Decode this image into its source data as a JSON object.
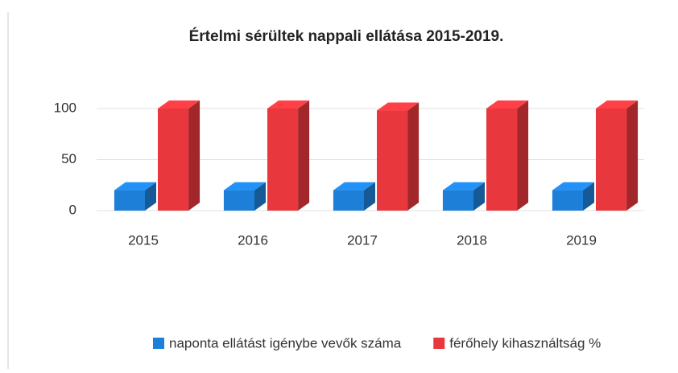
{
  "chart_data": {
    "type": "bar",
    "title": "Értelmi sérültek nappali ellátása 2015-2019.",
    "categories": [
      "2015",
      "2016",
      "2017",
      "2018",
      "2019"
    ],
    "series": [
      {
        "name": "naponta ellátást igénybe vevők száma",
        "color": "#1e7fd8",
        "values": [
          20,
          20,
          20,
          20,
          20
        ]
      },
      {
        "name": "férőhely kihasználtság %",
        "color": "#e8383d",
        "values": [
          100,
          100,
          98,
          100,
          100
        ]
      }
    ],
    "ylim": [
      0,
      100
    ],
    "yticks": [
      0,
      50,
      100
    ],
    "grid": true,
    "legend": "bottom"
  }
}
